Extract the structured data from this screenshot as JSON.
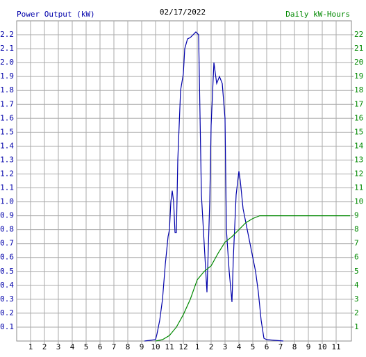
{
  "chart_data": {
    "type": "line",
    "title": "02/17/2022",
    "xlim": [
      0,
      24
    ],
    "xticks": [
      1,
      2,
      3,
      4,
      5,
      6,
      7,
      8,
      9,
      10,
      11,
      12,
      {
        "value": 13,
        "label": "1"
      },
      {
        "value": 14,
        "label": "2"
      },
      {
        "value": 15,
        "label": "3"
      },
      {
        "value": 16,
        "label": "4"
      },
      {
        "value": 17,
        "label": "5"
      },
      {
        "value": 18,
        "label": "6"
      },
      {
        "value": 19,
        "label": "7"
      },
      {
        "value": 20,
        "label": "8"
      },
      {
        "value": 21,
        "label": "9"
      },
      {
        "value": 22,
        "label": "10"
      },
      {
        "value": 23,
        "label": "11"
      }
    ],
    "ylim": [
      0,
      2.3
    ],
    "yticks": [
      0.1,
      0.2,
      0.3,
      0.4,
      0.5,
      0.6,
      0.7,
      0.8,
      0.9,
      {
        "value": 1,
        "label": "1.0"
      },
      1.1,
      1.2,
      1.3,
      1.4,
      1.5,
      1.6,
      1.7,
      1.8,
      1.9,
      {
        "value": 2,
        "label": "2.0"
      },
      2.1,
      2.2
    ],
    "y2lim": [
      0,
      23
    ],
    "y2ticks": [
      1,
      2,
      3,
      4,
      5,
      6,
      7,
      8,
      9,
      10,
      11,
      12,
      13,
      14,
      15,
      16,
      17,
      18,
      19,
      20,
      21,
      22
    ],
    "grid": true,
    "series": [
      {
        "name": "Power Output (kW)",
        "color": "#0000aa",
        "x": [
          9.2,
          10.0,
          10.1,
          10.3,
          10.5,
          10.7,
          10.9,
          11.0,
          11.1,
          11.2,
          11.3,
          11.4,
          11.5,
          11.6,
          11.8,
          12.0,
          12.1,
          12.3,
          12.5,
          12.7,
          12.9,
          13.1,
          13.3,
          13.7,
          13.9,
          14.0,
          14.2,
          14.4,
          14.6,
          14.8,
          15.0,
          15.1,
          15.3,
          15.5,
          15.6,
          15.8,
          16.0,
          16.1,
          16.3,
          16.6,
          17.0,
          17.2,
          17.4,
          17.6,
          17.8,
          18.0,
          19.2
        ],
        "values": [
          0,
          0.01,
          0.05,
          0.15,
          0.3,
          0.55,
          0.75,
          0.8,
          1.0,
          1.08,
          1.0,
          0.78,
          0.78,
          1.3,
          1.8,
          1.92,
          2.1,
          2.17,
          2.18,
          2.2,
          2.22,
          2.2,
          1.05,
          0.35,
          1.0,
          1.55,
          2.0,
          1.85,
          1.9,
          1.85,
          1.6,
          0.8,
          0.5,
          0.28,
          0.6,
          1.05,
          1.22,
          1.15,
          0.95,
          0.8,
          0.6,
          0.5,
          0.35,
          0.15,
          0.02,
          0.01,
          0
        ]
      },
      {
        "name": "Daily kW-Hours",
        "color": "#008800",
        "axis": "y2",
        "x": [
          10.0,
          10.5,
          11.0,
          11.5,
          12.0,
          12.5,
          13.0,
          13.5,
          14.0,
          14.5,
          15.0,
          15.5,
          16.0,
          16.5,
          17.0,
          17.5,
          24.0
        ],
        "values": [
          0,
          0.1,
          0.4,
          1.0,
          1.9,
          3.0,
          4.4,
          5.0,
          5.4,
          6.3,
          7.1,
          7.5,
          8.0,
          8.5,
          8.8,
          9.0,
          9.0
        ]
      }
    ]
  }
}
